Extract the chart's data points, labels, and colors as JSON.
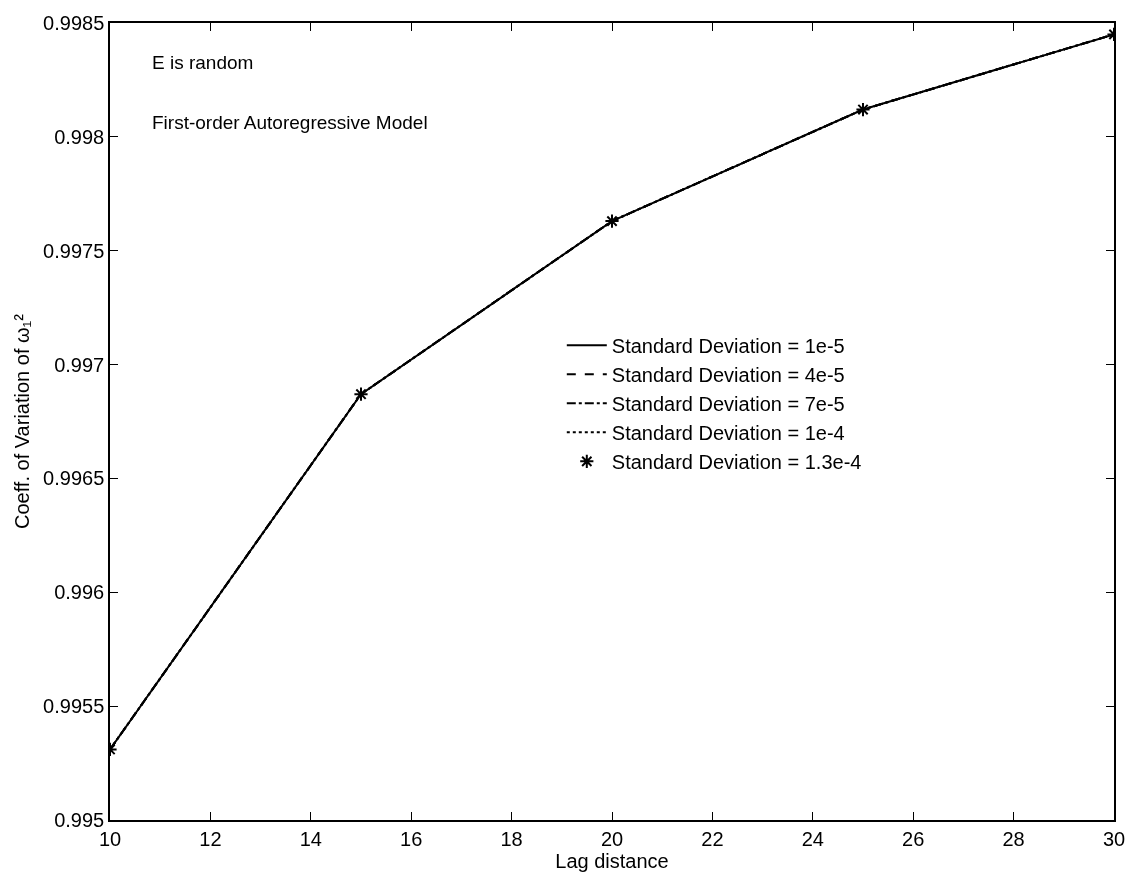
{
  "chart_data": {
    "type": "line",
    "xlabel": "Lag distance",
    "ylabel": "Coeff. of Variation of ω₁²",
    "annotations": [
      "E is random",
      "First-order Autoregressive Model"
    ],
    "x": [
      10,
      15,
      20,
      25,
      30
    ],
    "series": [
      {
        "name": "Standard Deviation = 1e-5",
        "color": "#000000",
        "line_style": "solid",
        "values": [
          0.99531,
          0.99687,
          0.99763,
          0.99812,
          0.99845
        ]
      },
      {
        "name": "Standard Deviation = 4e-5",
        "color": "#000000",
        "line_style": "dashed",
        "values": [
          0.99531,
          0.99687,
          0.99763,
          0.99812,
          0.99845
        ]
      },
      {
        "name": "Standard Deviation = 7e-5",
        "color": "#000000",
        "line_style": "dashdot",
        "values": [
          0.99531,
          0.99687,
          0.99763,
          0.99812,
          0.99845
        ]
      },
      {
        "name": "Standard Deviation = 1e-4",
        "color": "#000000",
        "line_style": "dotted",
        "values": [
          0.99531,
          0.99687,
          0.99763,
          0.99812,
          0.99845
        ]
      },
      {
        "name": "Standard Deviation = 1.3e-4",
        "type": "scatter",
        "color": "#000000",
        "marker": "cross",
        "values": [
          0.99531,
          0.99687,
          0.99763,
          0.99812,
          0.99845
        ]
      }
    ],
    "xlim": [
      10,
      30
    ],
    "xticks": [
      10,
      12,
      14,
      16,
      18,
      20,
      22,
      24,
      26,
      28,
      30
    ],
    "ylim": [
      0.995,
      0.9985
    ],
    "yticks": [
      0.995,
      0.9955,
      0.996,
      0.9965,
      0.997,
      0.9975,
      0.998,
      0.9985
    ],
    "legend": "right"
  }
}
